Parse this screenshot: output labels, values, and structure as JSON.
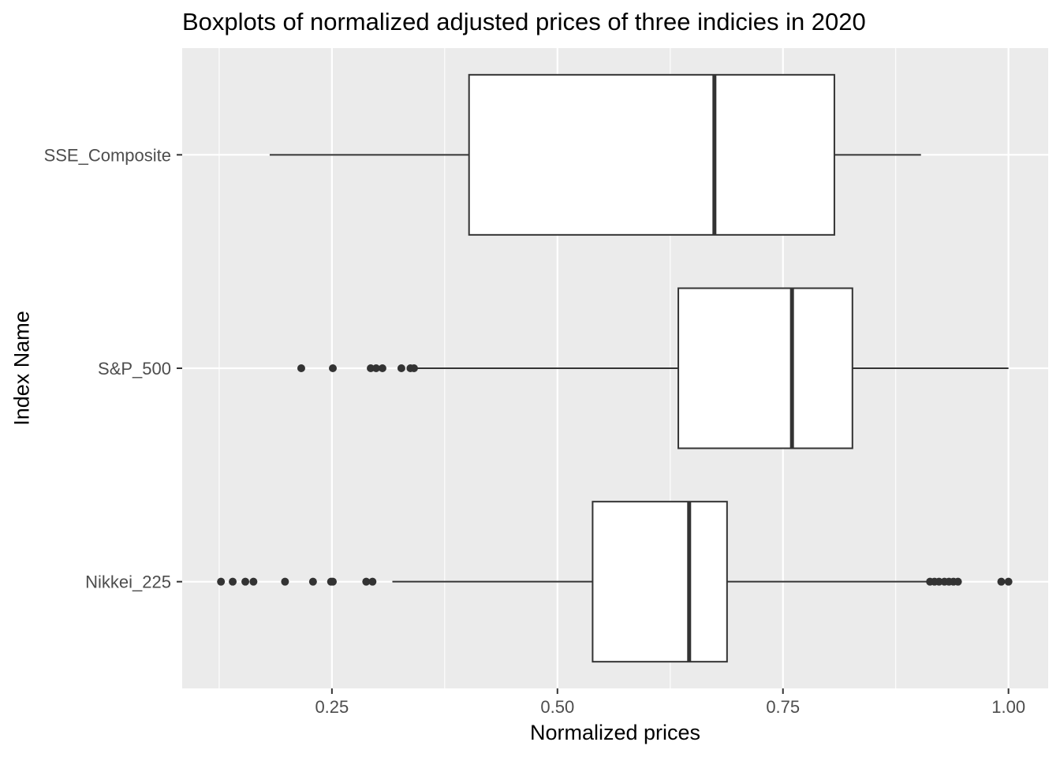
{
  "chart_data": {
    "type": "boxplot",
    "orientation": "horizontal",
    "title": "Boxplots of normalized adjusted prices of three indicies in 2020",
    "xlabel": "Normalized prices",
    "ylabel": "Index Name",
    "xlim": [
      0.084,
      1.044
    ],
    "x_ticks": [
      0.25,
      0.5,
      0.75,
      1.0
    ],
    "x_tick_labels": [
      "0.25",
      "0.50",
      "0.75",
      "1.00"
    ],
    "x_minor_ticks": [
      0.125,
      0.375,
      0.625,
      0.875
    ],
    "grid": true,
    "legend": "none",
    "categories": [
      "SSE_Composite",
      "S&P_500",
      "Nikkei_225"
    ],
    "boxes": [
      {
        "name": "SSE_Composite",
        "whisker_low": 0.181,
        "q1": 0.402,
        "median": 0.674,
        "q3": 0.807,
        "whisker_high": 0.903,
        "outliers": []
      },
      {
        "name": "S&P_500",
        "whisker_low": 0.345,
        "q1": 0.634,
        "median": 0.76,
        "q3": 0.827,
        "whisker_high": 1.0,
        "outliers": [
          0.216,
          0.251,
          0.293,
          0.299,
          0.306,
          0.327,
          0.337,
          0.341
        ]
      },
      {
        "name": "Nikkei_225",
        "whisker_low": 0.317,
        "q1": 0.539,
        "median": 0.646,
        "q3": 0.688,
        "whisker_high": 0.91,
        "outliers": [
          0.127,
          0.14,
          0.154,
          0.163,
          0.198,
          0.229,
          0.249,
          0.251,
          0.288,
          0.295,
          0.913,
          0.918,
          0.923,
          0.929,
          0.934,
          0.939,
          0.944,
          0.992,
          1.0
        ]
      }
    ],
    "colors": {
      "panel_background": "#ebebeb",
      "grid_line": "#ffffff",
      "box_fill": "#ffffff",
      "box_stroke": "#333333",
      "outlier": "#333333",
      "tick_text": "#4d4d4d"
    }
  }
}
